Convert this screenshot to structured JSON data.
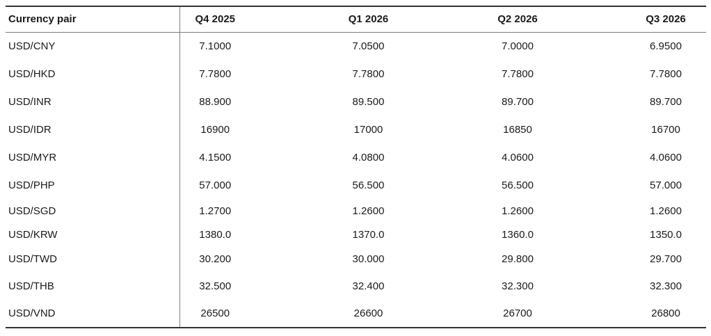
{
  "colors": {
    "text": "#1a1a1a",
    "rule_dark": "#333333",
    "rule_gray": "#7d7d7d",
    "background": "#ffffff"
  },
  "chart_data": {
    "type": "table",
    "title": "",
    "columns": [
      "Currency pair",
      "Q4 2025",
      "Q1 2026",
      "Q2 2026",
      "Q3 2026"
    ],
    "rows": [
      {
        "pair": "USD/CNY",
        "values": [
          "7.1000",
          "7.0500",
          "7.0000",
          "6.9500"
        ]
      },
      {
        "pair": "USD/HKD",
        "values": [
          "7.7800",
          "7.7800",
          "7.7800",
          "7.7800"
        ]
      },
      {
        "pair": "USD/INR",
        "values": [
          "88.900",
          "89.500",
          "89.700",
          "89.700"
        ]
      },
      {
        "pair": "USD/IDR",
        "values": [
          "16900",
          "17000",
          "16850",
          "16700"
        ]
      },
      {
        "pair": "USD/MYR",
        "values": [
          "4.1500",
          "4.0800",
          "4.0600",
          "4.0600"
        ]
      },
      {
        "pair": "USD/PHP",
        "values": [
          "57.000",
          "56.500",
          "56.500",
          "57.000"
        ]
      },
      {
        "pair": "USD/SGD",
        "values": [
          "1.2700",
          "1.2600",
          "1.2600",
          "1.2600"
        ]
      },
      {
        "pair": "USD/KRW",
        "values": [
          "1380.0",
          "1370.0",
          "1360.0",
          "1350.0"
        ]
      },
      {
        "pair": "USD/TWD",
        "values": [
          "30.200",
          "30.000",
          "29.800",
          "29.700"
        ]
      },
      {
        "pair": "USD/THB",
        "values": [
          "32.500",
          "32.400",
          "32.300",
          "32.300"
        ]
      },
      {
        "pair": "USD/VND",
        "values": [
          "26500",
          "26600",
          "26700",
          "26800"
        ]
      }
    ]
  }
}
